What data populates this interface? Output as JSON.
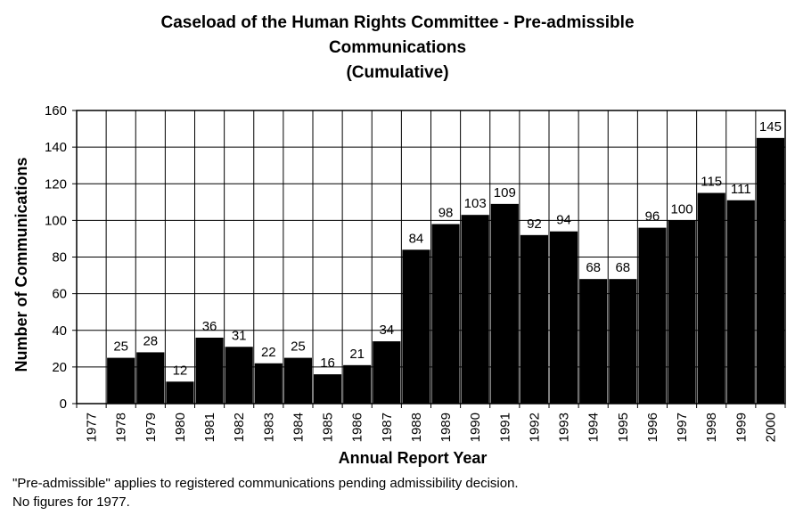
{
  "chart_data": {
    "type": "bar",
    "title_lines": [
      "Caseload of the Human Rights Committee - Pre-admissible",
      "Communications",
      "(Cumulative)"
    ],
    "xlabel": "Annual Report Year",
    "ylabel": "Number of Communications",
    "ylim": [
      0,
      160
    ],
    "ytick_step": 20,
    "grid": true,
    "categories": [
      "1977",
      "1978",
      "1979",
      "1980",
      "1981",
      "1982",
      "1983",
      "1984",
      "1985",
      "1986",
      "1987",
      "1988",
      "1989",
      "1990",
      "1991",
      "1992",
      "1993",
      "1994",
      "1995",
      "1996",
      "1997",
      "1998",
      "1999",
      "2000"
    ],
    "values": [
      null,
      25,
      28,
      12,
      36,
      31,
      22,
      25,
      16,
      21,
      34,
      84,
      98,
      103,
      109,
      92,
      94,
      68,
      68,
      96,
      100,
      115,
      111,
      145
    ],
    "bar_color": "#000000"
  },
  "notes": [
    "\"Pre-admissible\" applies to registered communications pending admissibility decision.",
    "No figures for 1977."
  ]
}
